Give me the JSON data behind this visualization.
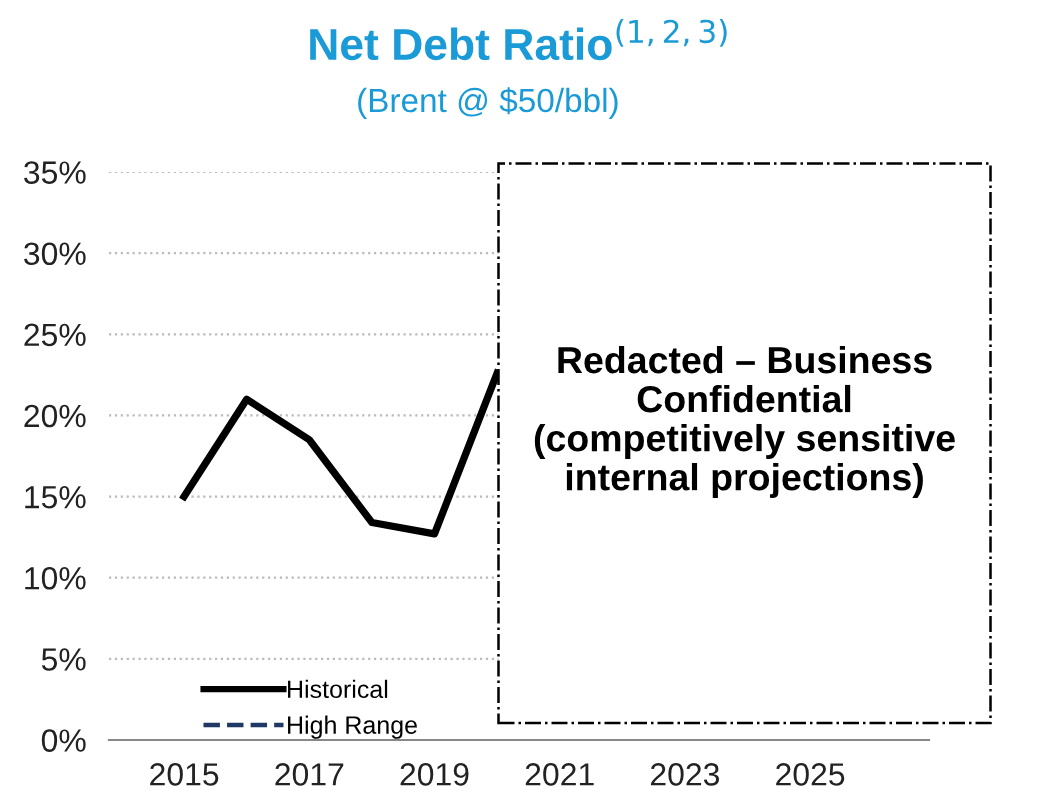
{
  "chart_data": {
    "type": "line",
    "title": "Net Debt Ratio$^{(1,2,3)}$",
    "subtitle": "(Brent @ $50/bbl)",
    "x": [
      2015,
      2016,
      2017,
      2018,
      2019,
      2020
    ],
    "series": [
      {
        "name": "Historical",
        "color": "#000000",
        "values": [
          15.0,
          21.0,
          18.5,
          13.4,
          12.7,
          22.6
        ],
        "line_style": "solid"
      },
      {
        "name": "High Range",
        "color": "#1f3864",
        "values": [
          null,
          null,
          null,
          null,
          null,
          null
        ],
        "line_style": "dashed"
      }
    ],
    "xlim": [
      2013.8,
      2026.9
    ],
    "xticks": [
      2015,
      2017,
      2019,
      2021,
      2023,
      2025
    ],
    "ylim": [
      0,
      35
    ],
    "yticks": [
      {
        "value": 0,
        "label": "0%"
      },
      {
        "value": 5,
        "label": "5%"
      },
      {
        "value": 10,
        "label": "10%"
      },
      {
        "value": 15,
        "label": "15%"
      },
      {
        "value": 20,
        "label": "20%"
      },
      {
        "value": 25,
        "label": "25%"
      },
      {
        "value": 30,
        "label": "30%"
      },
      {
        "value": 35,
        "label": "35%"
      }
    ],
    "grid": "y",
    "legend": "bottom left",
    "marker": "none",
    "annotations": [
      "Redacted – Business\nConfidential\n(competitively sensitive\ninternal projections)"
    ]
  }
}
